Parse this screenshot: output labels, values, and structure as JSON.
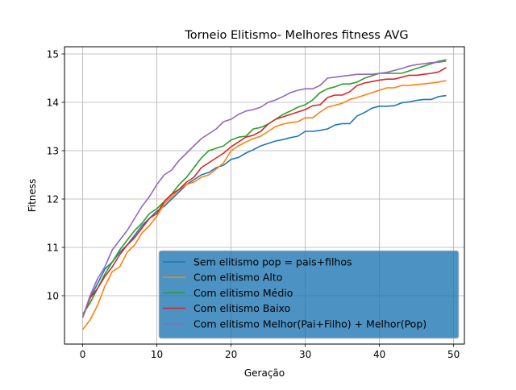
{
  "chart_data": {
    "type": "line",
    "title": "Torneio Elitismo- Melhores fitness AVG",
    "xlabel": "Geração",
    "ylabel": "Fitness",
    "xlim": [
      -2.45,
      51.45
    ],
    "ylim": [
      9.0,
      15.15
    ],
    "xticks": [
      0,
      10,
      20,
      30,
      40,
      50
    ],
    "yticks": [
      10,
      11,
      12,
      13,
      14,
      15
    ],
    "grid": true,
    "legend_position": "lower-right",
    "x": [
      0,
      1,
      2,
      3,
      4,
      5,
      6,
      7,
      8,
      9,
      10,
      11,
      12,
      13,
      14,
      15,
      16,
      17,
      18,
      19,
      20,
      21,
      22,
      23,
      24,
      25,
      26,
      27,
      28,
      29,
      30,
      31,
      32,
      33,
      34,
      35,
      36,
      37,
      38,
      39,
      40,
      41,
      42,
      43,
      44,
      45,
      46,
      47,
      48,
      49
    ],
    "series": [
      {
        "name": "Sem elitismo pop = pais+filhos",
        "color": "#1f77b4",
        "values": [
          9.55,
          9.95,
          10.25,
          10.55,
          10.7,
          10.9,
          11.05,
          11.25,
          11.45,
          11.6,
          11.75,
          11.85,
          12.0,
          12.15,
          12.3,
          12.4,
          12.5,
          12.55,
          12.65,
          12.7,
          12.82,
          12.86,
          12.95,
          13.02,
          13.1,
          13.15,
          13.2,
          13.23,
          13.27,
          13.3,
          13.4,
          13.4,
          13.42,
          13.45,
          13.53,
          13.56,
          13.56,
          13.72,
          13.79,
          13.88,
          13.92,
          13.92,
          13.93,
          13.99,
          14.01,
          14.04,
          14.06,
          14.06,
          14.12,
          14.14
        ]
      },
      {
        "name": "Com elitismo Alto",
        "color": "#ff7f0e",
        "values": [
          9.3,
          9.5,
          9.8,
          10.2,
          10.5,
          10.6,
          10.9,
          11.05,
          11.3,
          11.45,
          11.65,
          11.9,
          12.05,
          12.2,
          12.3,
          12.35,
          12.45,
          12.5,
          12.62,
          12.75,
          13.0,
          13.1,
          13.18,
          13.25,
          13.3,
          13.4,
          13.5,
          13.55,
          13.58,
          13.6,
          13.68,
          13.68,
          13.8,
          13.9,
          13.94,
          13.98,
          14.06,
          14.1,
          14.15,
          14.2,
          14.25,
          14.3,
          14.3,
          14.35,
          14.35,
          14.37,
          14.38,
          14.4,
          14.42,
          14.45
        ]
      },
      {
        "name": "Com elitismo Médio",
        "color": "#2ca02c",
        "values": [
          9.62,
          9.85,
          10.15,
          10.45,
          10.7,
          10.95,
          11.15,
          11.35,
          11.5,
          11.7,
          11.8,
          11.95,
          12.1,
          12.3,
          12.45,
          12.65,
          12.85,
          13.0,
          13.05,
          13.1,
          13.22,
          13.28,
          13.3,
          13.45,
          13.48,
          13.55,
          13.65,
          13.75,
          13.82,
          13.9,
          13.95,
          14.05,
          14.2,
          14.28,
          14.32,
          14.38,
          14.38,
          14.42,
          14.5,
          14.55,
          14.6,
          14.6,
          14.6,
          14.6,
          14.65,
          14.7,
          14.75,
          14.8,
          14.85,
          14.88
        ]
      },
      {
        "name": "Com elitismo Baixo",
        "color": "#d62728",
        "values": [
          9.55,
          9.95,
          10.15,
          10.4,
          10.6,
          10.85,
          11.05,
          11.2,
          11.4,
          11.6,
          11.7,
          11.95,
          12.1,
          12.2,
          12.35,
          12.45,
          12.65,
          12.75,
          12.85,
          12.95,
          13.08,
          13.18,
          13.28,
          13.32,
          13.4,
          13.55,
          13.65,
          13.7,
          13.75,
          13.8,
          13.85,
          13.93,
          13.95,
          14.1,
          14.15,
          14.15,
          14.22,
          14.35,
          14.4,
          14.43,
          14.46,
          14.48,
          14.48,
          14.52,
          14.56,
          14.56,
          14.58,
          14.6,
          14.63,
          14.72
        ]
      },
      {
        "name": "Com elitismo Melhor(Pai+Filho) + Melhor(Pop)",
        "color": "#9467bd",
        "values": [
          9.55,
          10.0,
          10.35,
          10.6,
          10.95,
          11.15,
          11.35,
          11.6,
          11.85,
          12.05,
          12.3,
          12.5,
          12.6,
          12.8,
          12.95,
          13.1,
          13.25,
          13.35,
          13.45,
          13.6,
          13.65,
          13.75,
          13.82,
          13.85,
          13.9,
          14.0,
          14.05,
          14.12,
          14.2,
          14.25,
          14.28,
          14.28,
          14.35,
          14.5,
          14.52,
          14.54,
          14.56,
          14.58,
          14.58,
          14.58,
          14.6,
          14.62,
          14.66,
          14.7,
          14.75,
          14.78,
          14.8,
          14.82,
          14.83,
          14.85
        ]
      }
    ]
  }
}
